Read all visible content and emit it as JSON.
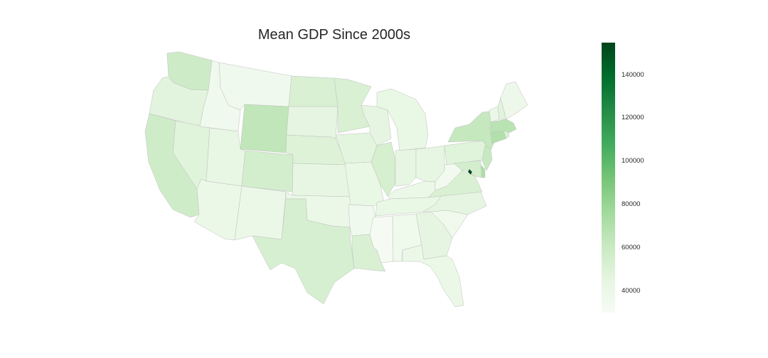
{
  "title": "Mean GDP Since 2000s",
  "colorbar": {
    "min": 30000,
    "max": 155000,
    "ticks": [
      "140000",
      "120000",
      "100000",
      "80000",
      "60000",
      "40000"
    ],
    "colors": [
      "#f7fcf5",
      "#e5f5e0",
      "#c7e9c0",
      "#a1d99b",
      "#74c476",
      "#41ab5d",
      "#238b45",
      "#006d2c",
      "#00441b"
    ]
  },
  "states": {
    "WA": 58000,
    "OR": 47000,
    "CA": 57000,
    "NV": 48000,
    "ID": 36000,
    "MT": 36000,
    "WY": 64000,
    "UT": 43000,
    "AZ": 40000,
    "CO": 55000,
    "NM": 40000,
    "ND": 52000,
    "SD": 45000,
    "NE": 50000,
    "KS": 44000,
    "OK": 40000,
    "TX": 53000,
    "MN": 52000,
    "IA": 46000,
    "MO": 42000,
    "AR": 36000,
    "LA": 52000,
    "WI": 45000,
    "IL": 54000,
    "MI": 42000,
    "IN": 44000,
    "OH": 44000,
    "KY": 40000,
    "TN": 42000,
    "MS": 32000,
    "AL": 37000,
    "GA": 45000,
    "FL": 40000,
    "SC": 37000,
    "NC": 45000,
    "VA": 52000,
    "WV": 34000,
    "PA": 48000,
    "NY": 62000,
    "VT": 40000,
    "NH": 48000,
    "ME": 38000,
    "MA": 67000,
    "RI": 50000,
    "CT": 70000,
    "NJ": 61000,
    "DE": 72000,
    "MD": 55000,
    "DC": 155000
  }
}
